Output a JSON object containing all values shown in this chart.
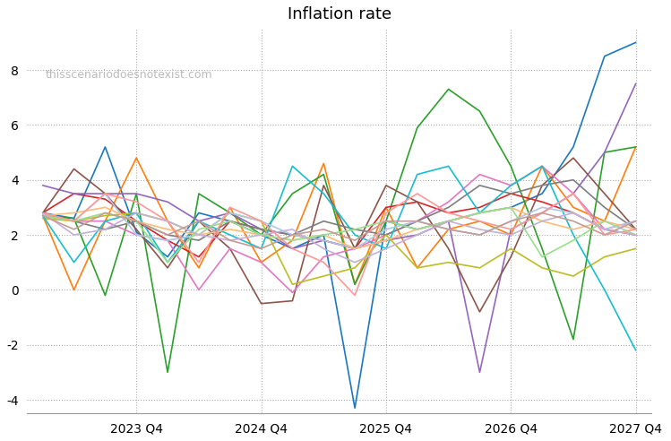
{
  "title": "Inflation rate",
  "watermark": "thisscenariodoesnotexist.com",
  "ylim": [
    -4.5,
    9.5
  ],
  "yticks": [
    -4,
    -2,
    0,
    2,
    4,
    6,
    8
  ],
  "n_quarters": 20,
  "xlim_start": -0.5,
  "xlim_end": 19.5,
  "xtick_positions": [
    3,
    7,
    11,
    15,
    19
  ],
  "xtick_labels": [
    "2023 Q4",
    "2024 Q4",
    "2025 Q4",
    "2026 Q4",
    "2027 Q4"
  ],
  "background_color": "#ffffff",
  "grid_color": "#aaaaaa",
  "scenarios": [
    {
      "color": "#1a78c2",
      "values": [
        2.8,
        2.6,
        5.2,
        2.1,
        1.2,
        2.8,
        2.5,
        2.0,
        1.5,
        2.0,
        -4.3,
        2.5,
        2.2,
        2.5,
        2.8,
        3.0,
        3.5,
        5.2,
        8.5,
        9.0
      ]
    },
    {
      "color": "#ff7f0e",
      "values": [
        2.7,
        0.0,
        2.5,
        4.8,
        2.5,
        0.8,
        3.0,
        1.0,
        1.8,
        4.6,
        0.2,
        3.0,
        0.8,
        2.2,
        2.5,
        2.0,
        4.5,
        3.0,
        2.5,
        5.2
      ]
    },
    {
      "color": "#2ca02c",
      "values": [
        2.7,
        2.6,
        -0.2,
        3.5,
        -3.0,
        3.5,
        2.8,
        2.0,
        3.5,
        4.2,
        0.2,
        2.5,
        5.9,
        7.3,
        6.5,
        4.5,
        1.5,
        -1.8,
        5.0,
        5.2
      ]
    },
    {
      "color": "#d62728",
      "values": [
        2.8,
        3.5,
        3.3,
        2.5,
        1.8,
        1.2,
        2.5,
        2.2,
        2.0,
        1.8,
        1.5,
        3.0,
        3.2,
        2.8,
        3.0,
        3.5,
        3.2,
        2.8,
        2.2,
        2.0
      ]
    },
    {
      "color": "#9467bd",
      "values": [
        3.8,
        3.5,
        3.5,
        3.5,
        3.2,
        2.5,
        2.8,
        2.2,
        1.5,
        1.8,
        1.5,
        1.8,
        2.0,
        2.5,
        -3.0,
        2.2,
        2.8,
        3.5,
        5.0,
        7.5
      ]
    },
    {
      "color": "#8c564b",
      "values": [
        2.8,
        4.4,
        3.5,
        2.2,
        0.8,
        2.5,
        1.5,
        -0.5,
        -0.4,
        3.8,
        1.5,
        3.8,
        3.2,
        1.5,
        -0.8,
        1.2,
        3.8,
        4.8,
        3.5,
        2.2
      ]
    },
    {
      "color": "#e377c2",
      "values": [
        2.7,
        2.5,
        2.5,
        2.0,
        1.8,
        0.0,
        1.5,
        1.0,
        -0.1,
        1.2,
        1.5,
        2.0,
        2.5,
        3.2,
        4.2,
        3.8,
        4.5,
        3.5,
        2.2,
        2.5
      ]
    },
    {
      "color": "#7f7f7f",
      "values": [
        2.8,
        2.5,
        2.2,
        2.5,
        2.0,
        1.8,
        2.5,
        2.2,
        2.0,
        2.5,
        2.2,
        2.0,
        2.5,
        3.0,
        3.8,
        3.5,
        3.8,
        4.0,
        3.0,
        2.2
      ]
    },
    {
      "color": "#bcbd22",
      "values": [
        2.6,
        2.5,
        2.7,
        2.8,
        2.5,
        2.0,
        2.8,
        2.5,
        0.2,
        0.5,
        0.8,
        2.0,
        0.8,
        1.0,
        0.8,
        1.5,
        0.8,
        0.5,
        1.2,
        1.5
      ]
    },
    {
      "color": "#17becf",
      "values": [
        2.7,
        1.0,
        2.5,
        2.8,
        1.0,
        2.5,
        2.0,
        1.5,
        4.5,
        3.5,
        2.0,
        1.5,
        4.2,
        4.5,
        2.8,
        3.8,
        4.5,
        2.0,
        0.0,
        -2.2
      ]
    },
    {
      "color": "#aec7e8",
      "values": [
        2.7,
        2.5,
        3.5,
        2.0,
        1.8,
        2.0,
        2.8,
        2.5,
        2.0,
        1.8,
        1.5,
        2.2,
        2.5,
        2.2,
        2.0,
        2.5,
        3.0,
        2.8,
        2.2,
        2.5
      ]
    },
    {
      "color": "#ffbb78",
      "values": [
        2.7,
        2.8,
        3.0,
        2.5,
        2.2,
        2.0,
        2.2,
        2.0,
        1.8,
        2.0,
        1.5,
        1.8,
        2.2,
        2.5,
        2.8,
        3.0,
        2.5,
        2.2,
        2.5,
        2.2
      ]
    },
    {
      "color": "#98df8a",
      "values": [
        2.7,
        2.5,
        2.8,
        2.5,
        1.0,
        2.2,
        2.5,
        2.0,
        1.8,
        2.0,
        2.2,
        2.5,
        2.2,
        2.5,
        2.8,
        3.0,
        1.2,
        1.8,
        2.5,
        2.0
      ]
    },
    {
      "color": "#ff9896",
      "values": [
        2.8,
        2.5,
        3.5,
        3.2,
        2.5,
        1.0,
        3.0,
        2.5,
        1.5,
        1.0,
        -0.2,
        2.8,
        3.5,
        2.8,
        2.5,
        2.2,
        2.8,
        3.5,
        2.0,
        2.2
      ]
    },
    {
      "color": "#c5b0d5",
      "values": [
        2.8,
        2.0,
        2.2,
        2.8,
        2.5,
        2.0,
        1.8,
        2.0,
        2.2,
        1.5,
        1.0,
        1.5,
        2.0,
        2.5,
        2.2,
        2.0,
        2.5,
        2.8,
        2.2,
        2.0
      ]
    },
    {
      "color": "#c49c94",
      "values": [
        2.7,
        2.2,
        2.8,
        2.5,
        2.0,
        2.5,
        1.8,
        1.5,
        2.0,
        2.2,
        1.8,
        2.5,
        2.5,
        2.2,
        2.0,
        2.5,
        2.8,
        2.5,
        2.0,
        2.5
      ]
    }
  ]
}
